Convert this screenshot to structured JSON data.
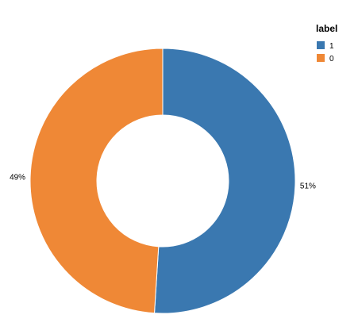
{
  "chart_data": {
    "type": "pie",
    "donut": true,
    "categories": [
      "1",
      "0"
    ],
    "values": [
      51,
      49
    ],
    "slice_labels": [
      "51%",
      "49%"
    ],
    "colors": [
      "#3a78b0",
      "#ef8836"
    ],
    "legend": {
      "title": "label",
      "position": "top-right",
      "items": [
        {
          "label": "1",
          "color": "#3a78b0"
        },
        {
          "label": "0",
          "color": "#ef8836"
        }
      ]
    }
  }
}
